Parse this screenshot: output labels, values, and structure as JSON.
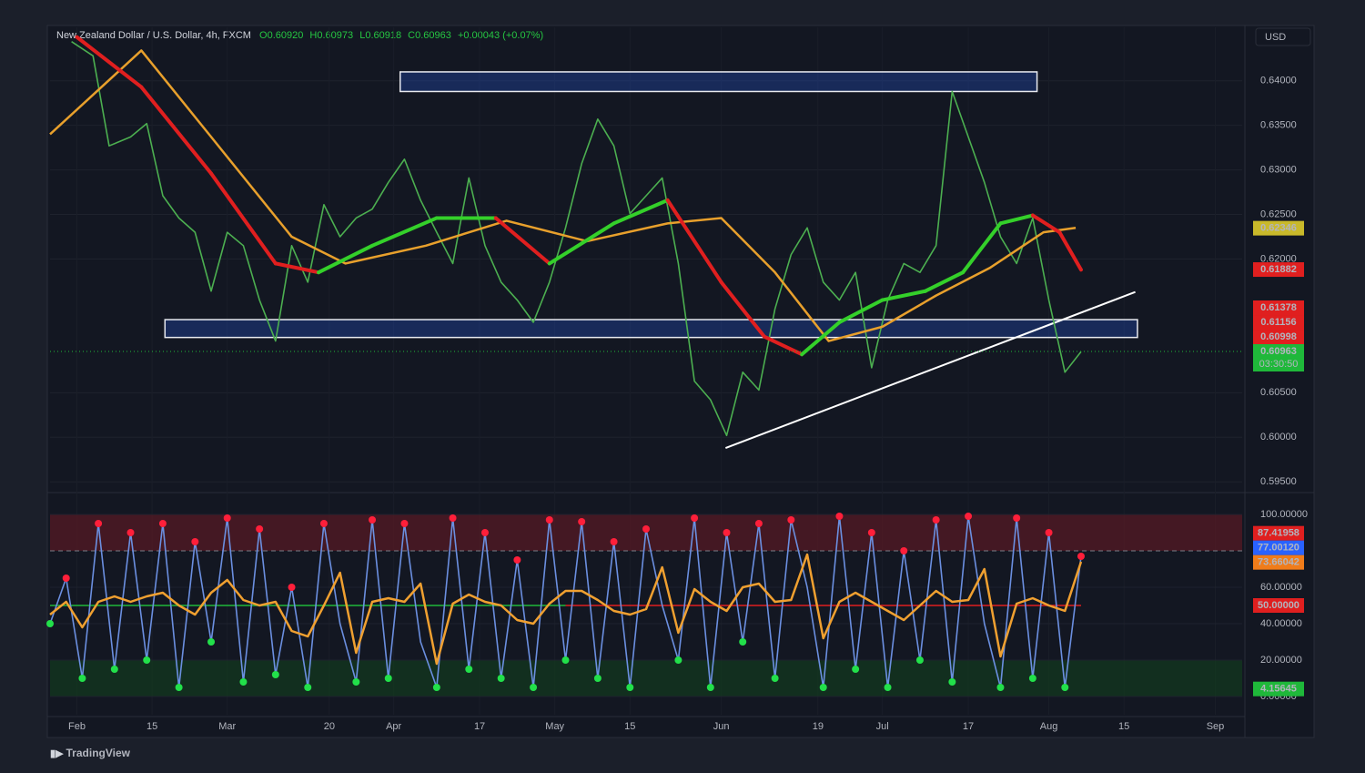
{
  "header": {
    "symbol": "New Zealand Dollar / U.S. Dollar, 4h, FXCM",
    "open": "O0.60920",
    "high": "H0.60973",
    "low": "L0.60918",
    "close": "C0.60963",
    "change": "+0.00043 (+0.07%)"
  },
  "currency": "USD",
  "brand": "TradingView",
  "chart_data": [
    {
      "type": "line",
      "xlim": [
        -5,
        217
      ],
      "ylim": [
        0.594,
        0.646
      ],
      "yticks": [
        {
          "value": 0.595,
          "label": "0.59500"
        },
        {
          "value": 0.6,
          "label": "0.60000"
        },
        {
          "value": 0.605,
          "label": "0.60500"
        },
        {
          "value": 0.62,
          "label": "0.62000"
        },
        {
          "value": 0.625,
          "label": "0.62500"
        },
        {
          "value": 0.63,
          "label": "0.63000"
        },
        {
          "value": 0.635,
          "label": "0.63500"
        },
        {
          "value": 0.64,
          "label": "0.64000"
        }
      ],
      "xticks": [
        {
          "value": 0,
          "label": "Feb"
        },
        {
          "value": 14,
          "label": "15"
        },
        {
          "value": 28,
          "label": "Mar"
        },
        {
          "value": 47,
          "label": "20"
        },
        {
          "value": 59,
          "label": "Apr"
        },
        {
          "value": 75,
          "label": "17"
        },
        {
          "value": 89,
          "label": "May"
        },
        {
          "value": 103,
          "label": "15"
        },
        {
          "value": 120,
          "label": "Jun"
        },
        {
          "value": 138,
          "label": "19"
        },
        {
          "value": 150,
          "label": "Jul"
        },
        {
          "value": 166,
          "label": "17"
        },
        {
          "value": 181,
          "label": "Aug"
        },
        {
          "value": 195,
          "label": "15"
        },
        {
          "value": 212,
          "label": "Sep"
        }
      ],
      "series": [
        {
          "color": "#4caf50",
          "x": [
            -1,
            3,
            6,
            10,
            13,
            16,
            19,
            22,
            25,
            28,
            31,
            34,
            37,
            40,
            43,
            46,
            49,
            52,
            55,
            58,
            61,
            64,
            67,
            70,
            73,
            76,
            79,
            82,
            85,
            88,
            91,
            94,
            97,
            100,
            103,
            106,
            109,
            112,
            115,
            118,
            121,
            124,
            127,
            130,
            133,
            136,
            139,
            142,
            145,
            148,
            151,
            154,
            157,
            160,
            163,
            166,
            169,
            172,
            175,
            178,
            181,
            184,
            187
          ],
          "values": [
            0.6444,
            0.6428,
            0.6327,
            0.6337,
            0.6352,
            0.6271,
            0.6246,
            0.623,
            0.6164,
            0.623,
            0.6215,
            0.6154,
            0.6108,
            0.6215,
            0.6174,
            0.6261,
            0.6225,
            0.6246,
            0.6256,
            0.6286,
            0.6312,
            0.6266,
            0.623,
            0.6195,
            0.6291,
            0.6215,
            0.6174,
            0.6154,
            0.6129,
            0.6174,
            0.6235,
            0.6307,
            0.6357,
            0.6327,
            0.6251,
            0.6271,
            0.6291,
            0.6195,
            0.6063,
            0.6042,
            0.6002,
            0.6073,
            0.6053,
            0.6144,
            0.6205,
            0.6235,
            0.6174,
            0.6154,
            0.6185,
            0.6078,
            0.6154,
            0.6195,
            0.6185,
            0.6215,
            0.6388,
            0.6337,
            0.6286,
            0.6225,
            0.6195,
            0.6246,
            0.6154,
            0.6073,
            0.6096
          ]
        },
        {
          "color": "#e8a02c",
          "x": [
            -5,
            12,
            25,
            40,
            50,
            65,
            80,
            95,
            110,
            120,
            130,
            140,
            150,
            160,
            170,
            180,
            186
          ],
          "values": [
            0.634,
            0.6434,
            0.6337,
            0.6225,
            0.6195,
            0.6215,
            0.6243,
            0.622,
            0.624,
            0.6246,
            0.6185,
            0.6108,
            0.6124,
            0.6159,
            0.619,
            0.623,
            0.6235
          ]
        },
        {
          "color": "#e01f1f",
          "up_color": "#34d02a",
          "x": [
            0,
            12,
            25,
            37,
            45,
            55,
            67,
            78,
            88,
            100,
            110,
            120,
            128,
            135,
            142,
            150,
            158,
            165,
            172,
            178,
            183,
            187
          ],
          "values": [
            0.6449,
            0.6393,
            0.6296,
            0.6195,
            0.6185,
            0.6215,
            0.6246,
            0.6246,
            0.6195,
            0.624,
            0.6266,
            0.6174,
            0.6113,
            0.6093,
            0.6129,
            0.6154,
            0.6164,
            0.6185,
            0.624,
            0.6249,
            0.623,
            0.6188
          ]
        }
      ],
      "zones": [
        {
          "x": [
            60.2,
            178.8
          ],
          "y": [
            0.6388,
            0.641
          ]
        },
        {
          "x": [
            16.4,
            197.5
          ],
          "y": [
            0.6112,
            0.6132
          ]
        }
      ],
      "trendline": {
        "x": [
          120.8,
          197.1
        ],
        "y": [
          0.5988,
          0.6163
        ]
      },
      "price_labels": [
        {
          "value": 0.62346,
          "color": "#c9b92a"
        },
        {
          "value": 0.61882,
          "color": "#e01f1f"
        },
        {
          "value": 0.61378,
          "color": "#e01f1f"
        },
        {
          "value": 0.61156,
          "color": "#e01f1f"
        },
        {
          "value": 0.60998,
          "color": "#e01f1f"
        },
        {
          "value": 0.60963,
          "color": "#1fb83a"
        }
      ],
      "countdown": "03:30:50"
    },
    {
      "type": "line",
      "xlim": [
        -5,
        217
      ],
      "ylim": [
        -10,
        110
      ],
      "yticks": [
        {
          "value": 0,
          "label": "0.00000"
        },
        {
          "value": 20,
          "label": "20.00000"
        },
        {
          "value": 40,
          "label": "40.00000"
        },
        {
          "value": 60,
          "label": "60.00000"
        },
        {
          "value": 100,
          "label": "100.00000"
        }
      ],
      "bands": [
        {
          "y": [
            80,
            100
          ],
          "color": "#5a1a24"
        },
        {
          "y": [
            0,
            20
          ],
          "color": "#123a1e"
        }
      ],
      "levels": [
        0,
        20,
        80,
        100
      ],
      "midline": {
        "value": 50,
        "colors": [
          "#1fb83a",
          "#e01f1f"
        ]
      },
      "series": [
        {
          "color": "#6b8fe0",
          "values": [
            40,
            65,
            10,
            95,
            15,
            90,
            20,
            95,
            5,
            85,
            30,
            98,
            8,
            92,
            12,
            60,
            5,
            95,
            40,
            8,
            97,
            10,
            95,
            30,
            5,
            98,
            15,
            90,
            10,
            75,
            5,
            97,
            20,
            96,
            10,
            85,
            5,
            92,
            50,
            20,
            98,
            5,
            90,
            30,
            95,
            10,
            97,
            60,
            5,
            99,
            15,
            90,
            5,
            80,
            20,
            97,
            8,
            99,
            40,
            5,
            98,
            10,
            90,
            5,
            77
          ]
        },
        {
          "color": "#f0a030",
          "values": [
            45,
            52,
            38,
            52,
            55,
            52,
            55,
            57,
            50,
            45,
            57,
            64,
            53,
            50,
            52,
            36,
            33,
            50,
            68,
            24,
            52,
            54,
            52,
            62,
            18,
            51,
            56,
            52,
            50,
            42,
            40,
            51,
            58,
            58,
            53,
            47,
            45,
            48,
            71,
            35,
            59,
            52,
            47,
            60,
            62,
            52,
            53,
            78,
            32,
            52,
            57,
            52,
            47,
            42,
            50,
            58,
            52,
            53,
            70,
            22,
            51,
            54,
            50,
            47,
            74
          ]
        }
      ],
      "x": [
        -5,
        -2,
        1,
        4,
        7,
        10,
        13,
        16,
        19,
        22,
        25,
        28,
        31,
        34,
        37,
        40,
        43,
        46,
        49,
        52,
        55,
        58,
        61,
        64,
        67,
        70,
        73,
        76,
        79,
        82,
        85,
        88,
        91,
        94,
        97,
        100,
        103,
        106,
        109,
        112,
        115,
        118,
        121,
        124,
        127,
        130,
        133,
        136,
        139,
        142,
        145,
        148,
        151,
        154,
        157,
        160,
        163,
        166,
        169,
        172,
        175,
        178,
        181,
        184,
        187
      ],
      "price_labels": [
        {
          "value": 87.41958,
          "color": "#e01f1f"
        },
        {
          "value": 77.0012,
          "label": "77.00120",
          "color": "#2962ff"
        },
        {
          "value": 73.66042,
          "color": "#f07c1a"
        },
        {
          "value": 50,
          "label": "50.00000",
          "color": "#e01f1f"
        },
        {
          "value": 4.15645,
          "color": "#1fb83a"
        }
      ]
    }
  ]
}
